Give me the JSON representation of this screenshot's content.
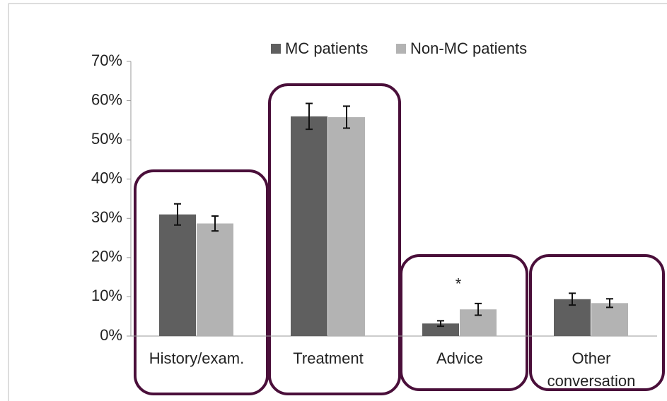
{
  "chart_data": {
    "type": "bar",
    "categories": [
      "History/exam.",
      "Treatment",
      "Advice",
      "Other conversation"
    ],
    "series": [
      {
        "name": "MC patients",
        "color": "#5f5f5f",
        "values": [
          31,
          56,
          3.2,
          9.4
        ],
        "errors": [
          2.7,
          3.3,
          0.7,
          1.5
        ]
      },
      {
        "name": "Non-MC patients",
        "color": "#b3b3b3",
        "values": [
          28.7,
          55.8,
          6.8,
          8.4
        ],
        "errors": [
          1.9,
          2.8,
          1.5,
          1.1
        ]
      }
    ],
    "annotations": [
      {
        "text": "*",
        "category": 2
      }
    ],
    "ylim": [
      0,
      70
    ],
    "yticks": [
      {
        "value": 0,
        "label": "0%"
      },
      {
        "value": 10,
        "label": "10%"
      },
      {
        "value": 20,
        "label": "20%"
      },
      {
        "value": 30,
        "label": "30%"
      },
      {
        "value": 40,
        "label": "40%"
      },
      {
        "value": 50,
        "label": "50%"
      },
      {
        "value": 60,
        "label": "60%"
      },
      {
        "value": 70,
        "label": "70%"
      }
    ],
    "legend": "top"
  }
}
